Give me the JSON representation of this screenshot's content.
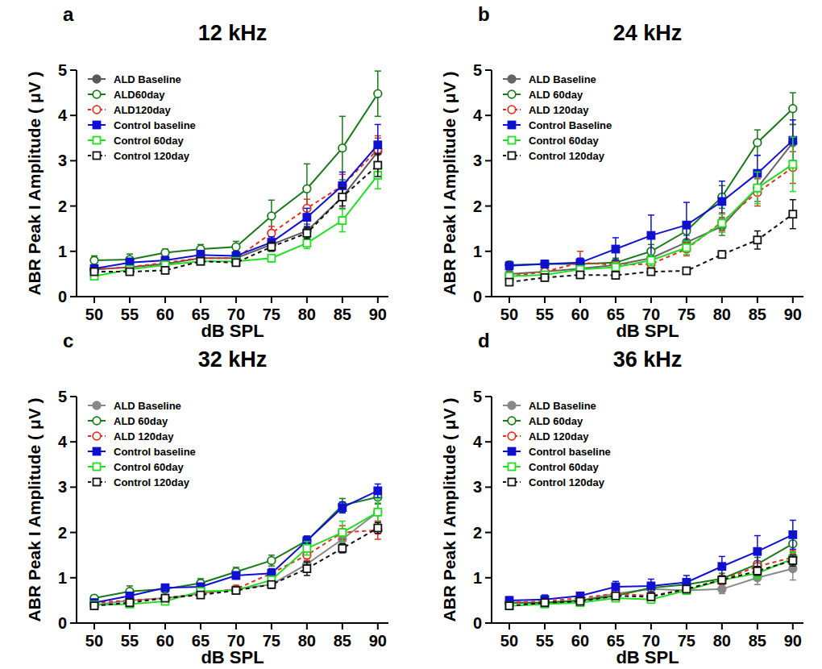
{
  "chart_data": [
    {
      "panel": "a",
      "type": "line",
      "title": "12 kHz",
      "x_label": "dB SPL",
      "y_label": "ABR Peak I Amplitude ( μV )",
      "x": [
        50,
        55,
        60,
        65,
        70,
        75,
        80,
        85,
        90
      ],
      "xlim": [
        47.5,
        91.5
      ],
      "xticks": [
        50,
        55,
        60,
        65,
        70,
        75,
        80,
        85,
        90
      ],
      "ylim": [
        0,
        5
      ],
      "yticks": [
        0,
        1,
        2,
        3,
        4,
        5
      ],
      "legend": "top-left",
      "series": [
        {
          "name": "ALD Baseline",
          "color": "#5a5a5a",
          "marker": "circle",
          "line_style": "solid",
          "values": [
            0.6,
            0.65,
            0.72,
            0.85,
            0.85,
            1.15,
            1.45,
            2.2,
            3.2
          ],
          "errors": [
            0.08,
            0.08,
            0.08,
            0.08,
            0.08,
            0.12,
            0.15,
            0.25,
            0.3
          ]
        },
        {
          "name": "ALD60day",
          "color": "#1a7a1a",
          "marker": "circle-open",
          "line_style": "solid",
          "values": [
            0.8,
            0.82,
            0.97,
            1.05,
            1.1,
            1.78,
            2.38,
            3.28,
            4.48
          ],
          "errors": [
            0.1,
            0.12,
            0.08,
            0.1,
            0.12,
            0.35,
            0.55,
            0.7,
            0.5
          ]
        },
        {
          "name": "ALD120day",
          "color": "#e03020",
          "marker": "circle-open",
          "line_style": "dashed",
          "values": [
            0.6,
            0.65,
            0.75,
            0.85,
            0.85,
            1.4,
            1.95,
            2.45,
            3.25
          ],
          "errors": [
            0.08,
            0.08,
            0.08,
            0.08,
            0.1,
            0.15,
            0.2,
            0.25,
            0.3
          ]
        },
        {
          "name": "Control baseline",
          "color": "#1010d0",
          "marker": "square",
          "line_style": "solid",
          "values": [
            0.62,
            0.75,
            0.8,
            0.92,
            0.9,
            1.2,
            1.75,
            2.45,
            3.35
          ],
          "errors": [
            0.08,
            0.1,
            0.08,
            0.1,
            0.1,
            0.12,
            0.2,
            0.3,
            0.45
          ]
        },
        {
          "name": "Control 60day",
          "color": "#22dd22",
          "marker": "square-open",
          "line_style": "solid",
          "values": [
            0.45,
            0.6,
            0.7,
            0.78,
            0.78,
            0.85,
            1.18,
            1.68,
            2.68
          ],
          "errors": [
            0.06,
            0.06,
            0.06,
            0.06,
            0.06,
            0.08,
            0.12,
            0.25,
            0.3
          ]
        },
        {
          "name": "Control 120day",
          "color": "#111111",
          "marker": "square-open",
          "line_style": "dashed",
          "values": [
            0.55,
            0.55,
            0.58,
            0.78,
            0.75,
            1.1,
            1.4,
            2.2,
            2.9
          ],
          "errors": [
            0.06,
            0.06,
            0.06,
            0.06,
            0.06,
            0.1,
            0.12,
            0.2,
            0.25
          ]
        }
      ]
    },
    {
      "panel": "b",
      "type": "line",
      "title": "24 kHz",
      "x_label": "dB SPL",
      "y_label": "ABR Peak I Amplitude ( μV )",
      "x": [
        50,
        55,
        60,
        65,
        70,
        75,
        80,
        85,
        90
      ],
      "xlim": [
        47.5,
        91.5
      ],
      "xticks": [
        50,
        55,
        60,
        65,
        70,
        75,
        80,
        85,
        90
      ],
      "ylim": [
        0,
        5
      ],
      "yticks": [
        0,
        1,
        2,
        3,
        4,
        5
      ],
      "legend": "top-left",
      "series": [
        {
          "name": "ALD Baseline",
          "color": "#666666",
          "marker": "circle",
          "line_style": "solid",
          "values": [
            0.5,
            0.55,
            0.62,
            0.7,
            0.85,
            1.2,
            1.55,
            2.4,
            3.4
          ],
          "errors": [
            0.08,
            0.08,
            0.08,
            0.1,
            0.1,
            0.15,
            0.2,
            0.3,
            0.4
          ]
        },
        {
          "name": "ALD 60day",
          "color": "#1a7a1a",
          "marker": "circle-open",
          "line_style": "solid",
          "values": [
            0.7,
            0.72,
            0.72,
            0.75,
            1.0,
            1.45,
            2.2,
            3.4,
            4.15
          ],
          "errors": [
            0.08,
            0.08,
            0.1,
            0.1,
            0.15,
            0.2,
            0.25,
            0.28,
            0.35
          ]
        },
        {
          "name": "ALD 120day",
          "color": "#e03020",
          "marker": "circle-open",
          "line_style": "dashed",
          "values": [
            0.45,
            0.55,
            0.75,
            0.7,
            0.72,
            1.05,
            1.65,
            2.3,
            2.85
          ],
          "errors": [
            0.08,
            0.1,
            0.25,
            0.1,
            0.1,
            0.15,
            0.2,
            0.3,
            0.35
          ]
        },
        {
          "name": "Control Baseline",
          "color": "#1010d0",
          "marker": "square",
          "line_style": "solid",
          "values": [
            0.68,
            0.72,
            0.75,
            1.05,
            1.35,
            1.58,
            2.1,
            2.72,
            3.45
          ],
          "errors": [
            0.08,
            0.08,
            0.1,
            0.25,
            0.45,
            0.5,
            0.45,
            0.4,
            0.45
          ]
        },
        {
          "name": "Control 60day",
          "color": "#22dd22",
          "marker": "square-open",
          "line_style": "solid",
          "values": [
            0.45,
            0.48,
            0.6,
            0.65,
            0.8,
            1.08,
            1.62,
            2.4,
            2.92
          ],
          "errors": [
            0.06,
            0.06,
            0.08,
            0.1,
            0.12,
            0.15,
            0.2,
            0.35,
            0.6
          ]
        },
        {
          "name": "Control 120day",
          "color": "#111111",
          "marker": "square-open",
          "line_style": "dashed",
          "values": [
            0.32,
            0.42,
            0.48,
            0.47,
            0.55,
            0.57,
            0.93,
            1.25,
            1.82
          ],
          "errors": [
            0.04,
            0.04,
            0.05,
            0.05,
            0.05,
            0.06,
            0.08,
            0.2,
            0.32
          ]
        }
      ]
    },
    {
      "panel": "c",
      "type": "line",
      "title": "32 kHz",
      "x_label": "dB SPL",
      "y_label": "ABR Peak I Amplitude ( μV )",
      "x": [
        50,
        55,
        60,
        65,
        70,
        75,
        80,
        85,
        90
      ],
      "xlim": [
        47.5,
        91.5
      ],
      "xticks": [
        50,
        55,
        60,
        65,
        70,
        75,
        80,
        85,
        90
      ],
      "ylim": [
        0,
        5
      ],
      "yticks": [
        0,
        1,
        2,
        3,
        4,
        5
      ],
      "legend": "top-left",
      "series": [
        {
          "name": "ALD Baseline",
          "color": "#888888",
          "marker": "circle",
          "line_style": "solid",
          "values": [
            0.4,
            0.5,
            0.55,
            0.65,
            0.75,
            0.85,
            1.3,
            1.85,
            2.45
          ],
          "errors": [
            0.05,
            0.05,
            0.06,
            0.06,
            0.08,
            0.08,
            0.12,
            0.15,
            0.2
          ]
        },
        {
          "name": "ALD 60day",
          "color": "#1a7a1a",
          "marker": "circle-open",
          "line_style": "solid",
          "values": [
            0.55,
            0.7,
            0.75,
            0.88,
            1.13,
            1.38,
            1.82,
            2.6,
            2.78
          ],
          "errors": [
            0.06,
            0.12,
            0.08,
            0.1,
            0.1,
            0.12,
            0.1,
            0.15,
            0.15
          ]
        },
        {
          "name": "ALD 120day",
          "color": "#e03020",
          "marker": "circle-open",
          "line_style": "dashed",
          "values": [
            0.45,
            0.5,
            0.55,
            0.65,
            0.75,
            1.1,
            1.5,
            2.0,
            2.05
          ],
          "errors": [
            0.05,
            0.05,
            0.06,
            0.06,
            0.08,
            0.1,
            0.12,
            0.15,
            0.2
          ]
        },
        {
          "name": "Control baseline",
          "color": "#1010d0",
          "marker": "square",
          "line_style": "solid",
          "values": [
            0.45,
            0.6,
            0.78,
            0.8,
            1.05,
            1.1,
            1.82,
            2.55,
            2.92
          ],
          "errors": [
            0.05,
            0.06,
            0.06,
            0.08,
            0.08,
            0.1,
            0.1,
            0.12,
            0.15
          ]
        },
        {
          "name": "Control 60day",
          "color": "#22dd22",
          "marker": "square-open",
          "line_style": "solid",
          "values": [
            0.4,
            0.42,
            0.48,
            0.7,
            0.72,
            0.95,
            1.65,
            2.0,
            2.45
          ],
          "errors": [
            0.05,
            0.05,
            0.06,
            0.06,
            0.08,
            0.08,
            0.15,
            0.25,
            0.3
          ]
        },
        {
          "name": "Control 120day",
          "color": "#111111",
          "marker": "square-open",
          "line_style": "dashed",
          "values": [
            0.38,
            0.45,
            0.55,
            0.62,
            0.72,
            0.85,
            1.2,
            1.65,
            2.1
          ],
          "errors": [
            0.04,
            0.05,
            0.05,
            0.06,
            0.06,
            0.08,
            0.15,
            0.1,
            0.12
          ]
        }
      ]
    },
    {
      "panel": "d",
      "type": "line",
      "title": "36 kHz",
      "x_label": "dB SPL",
      "y_label": "ABR Peak I Amplitude ( μV )",
      "x": [
        50,
        55,
        60,
        65,
        70,
        75,
        80,
        85,
        90
      ],
      "xlim": [
        47.5,
        91.5
      ],
      "xticks": [
        50,
        55,
        60,
        65,
        70,
        75,
        80,
        85,
        90
      ],
      "ylim": [
        0,
        5
      ],
      "yticks": [
        0,
        1,
        2,
        3,
        4,
        5
      ],
      "legend": "top-left",
      "series": [
        {
          "name": "ALD Baseline",
          "color": "#888888",
          "marker": "circle",
          "line_style": "solid",
          "values": [
            0.45,
            0.45,
            0.5,
            0.65,
            0.75,
            0.72,
            0.75,
            1.0,
            1.2
          ],
          "errors": [
            0.05,
            0.05,
            0.05,
            0.06,
            0.08,
            0.08,
            0.1,
            0.15,
            0.25
          ]
        },
        {
          "name": "ALD 60day",
          "color": "#1a7a1a",
          "marker": "circle-open",
          "line_style": "solid",
          "values": [
            0.45,
            0.45,
            0.5,
            0.6,
            0.78,
            0.85,
            0.98,
            1.3,
            1.75
          ],
          "errors": [
            0.05,
            0.05,
            0.05,
            0.08,
            0.1,
            0.1,
            0.12,
            0.15,
            0.2
          ]
        },
        {
          "name": "ALD 120day",
          "color": "#e03020",
          "marker": "circle-open",
          "line_style": "dashed",
          "values": [
            0.45,
            0.48,
            0.55,
            0.65,
            0.6,
            0.75,
            0.95,
            1.25,
            1.45
          ],
          "errors": [
            0.05,
            0.05,
            0.05,
            0.06,
            0.06,
            0.08,
            0.1,
            0.12,
            0.15
          ]
        },
        {
          "name": "Control baseline",
          "color": "#1010d0",
          "marker": "square",
          "line_style": "solid",
          "values": [
            0.5,
            0.52,
            0.6,
            0.8,
            0.82,
            0.9,
            1.25,
            1.58,
            1.95
          ],
          "errors": [
            0.08,
            0.1,
            0.06,
            0.12,
            0.15,
            0.15,
            0.22,
            0.35,
            0.32
          ]
        },
        {
          "name": "Control 60day",
          "color": "#22dd22",
          "marker": "square-open",
          "line_style": "solid",
          "values": [
            0.38,
            0.42,
            0.45,
            0.55,
            0.52,
            0.72,
            0.95,
            1.1,
            1.42
          ],
          "errors": [
            0.04,
            0.04,
            0.05,
            0.05,
            0.05,
            0.06,
            0.08,
            0.12,
            0.15
          ]
        },
        {
          "name": "Control 120day",
          "color": "#111111",
          "marker": "square-open",
          "line_style": "dashed",
          "values": [
            0.38,
            0.45,
            0.48,
            0.6,
            0.58,
            0.75,
            0.95,
            1.15,
            1.38
          ],
          "errors": [
            0.04,
            0.04,
            0.05,
            0.05,
            0.05,
            0.06,
            0.08,
            0.1,
            0.12
          ]
        }
      ]
    }
  ]
}
